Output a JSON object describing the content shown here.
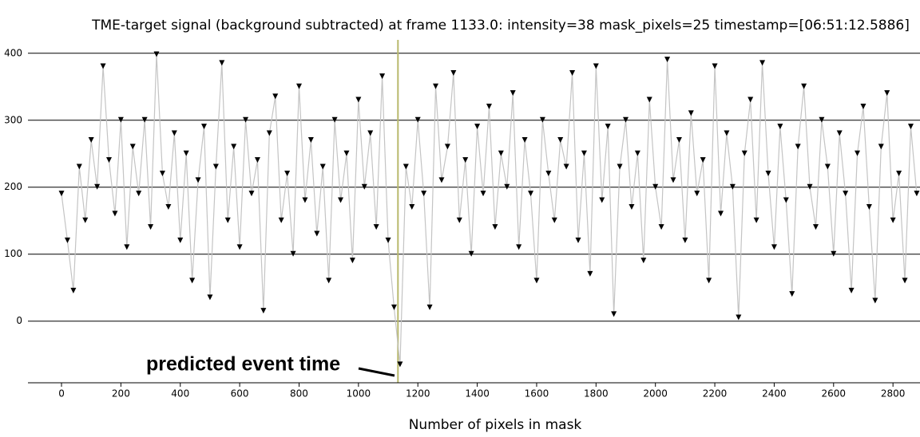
{
  "chart_data": {
    "type": "line",
    "title": "TME-target signal (background subtracted) at frame 1133.0: intensity=38 mask_pixels=25 timestamp=[06:51:12.5886]",
    "xlabel": "Number of pixels in mask",
    "annotation": "predicted event time",
    "event_x": 1133,
    "event_color": "#b8b86c",
    "line_color": "#c4c4c4",
    "marker_color": "#000000",
    "grid": true,
    "xlim": [
      -113,
      2891
    ],
    "ylim": [
      -92,
      414
    ],
    "xticks": [
      0,
      200,
      400,
      600,
      800,
      1000,
      1200,
      1400,
      1600,
      1800,
      2000,
      2200,
      2400,
      2600,
      2800
    ],
    "yticks": [
      0,
      100,
      200,
      300,
      400
    ],
    "x": [
      0,
      20,
      40,
      60,
      80,
      100,
      120,
      140,
      160,
      180,
      200,
      220,
      240,
      260,
      280,
      300,
      320,
      340,
      360,
      380,
      400,
      420,
      440,
      460,
      480,
      500,
      520,
      540,
      560,
      580,
      600,
      620,
      640,
      660,
      680,
      700,
      720,
      740,
      760,
      780,
      800,
      820,
      840,
      860,
      880,
      900,
      920,
      940,
      960,
      980,
      1000,
      1020,
      1040,
      1060,
      1080,
      1100,
      1120,
      1140,
      1160,
      1180,
      1200,
      1220,
      1240,
      1260,
      1280,
      1300,
      1320,
      1340,
      1360,
      1380,
      1400,
      1420,
      1440,
      1460,
      1480,
      1500,
      1520,
      1540,
      1560,
      1580,
      1600,
      1620,
      1640,
      1660,
      1680,
      1700,
      1720,
      1740,
      1760,
      1780,
      1800,
      1820,
      1840,
      1860,
      1880,
      1900,
      1920,
      1940,
      1960,
      1980,
      2000,
      2020,
      2040,
      2060,
      2080,
      2100,
      2120,
      2140,
      2160,
      2180,
      2200,
      2220,
      2240,
      2260,
      2280,
      2300,
      2320,
      2340,
      2360,
      2380,
      2400,
      2420,
      2440,
      2460,
      2480,
      2500,
      2520,
      2540,
      2560,
      2580,
      2600,
      2620,
      2640,
      2660,
      2680,
      2700,
      2720,
      2740,
      2760,
      2780,
      2800,
      2820,
      2840,
      2860,
      2880
    ],
    "values": [
      190,
      120,
      45,
      230,
      150,
      270,
      200,
      380,
      240,
      160,
      300,
      110,
      260,
      190,
      300,
      140,
      398,
      220,
      170,
      280,
      120,
      250,
      60,
      210,
      290,
      35,
      230,
      385,
      150,
      260,
      110,
      300,
      190,
      240,
      15,
      280,
      335,
      150,
      220,
      100,
      350,
      180,
      270,
      130,
      230,
      60,
      300,
      180,
      250,
      90,
      330,
      200,
      280,
      140,
      365,
      120,
      20,
      -65,
      230,
      170,
      300,
      190,
      20,
      350,
      210,
      260,
      370,
      150,
      240,
      100,
      290,
      190,
      320,
      140,
      250,
      200,
      340,
      110,
      270,
      190,
      60,
      300,
      220,
      150,
      270,
      230,
      370,
      120,
      250,
      70,
      380,
      180,
      290,
      10,
      230,
      300,
      170,
      250,
      90,
      330,
      200,
      140,
      390,
      210,
      270,
      120,
      310,
      190,
      240,
      60,
      380,
      160,
      280,
      200,
      5,
      250,
      330,
      150,
      385,
      220,
      110,
      290,
      180,
      40,
      260,
      350,
      200,
      140,
      300,
      230,
      100,
      280,
      190,
      45,
      250,
      320,
      170,
      30,
      260,
      340,
      150,
      220,
      60,
      290,
      190
    ]
  }
}
